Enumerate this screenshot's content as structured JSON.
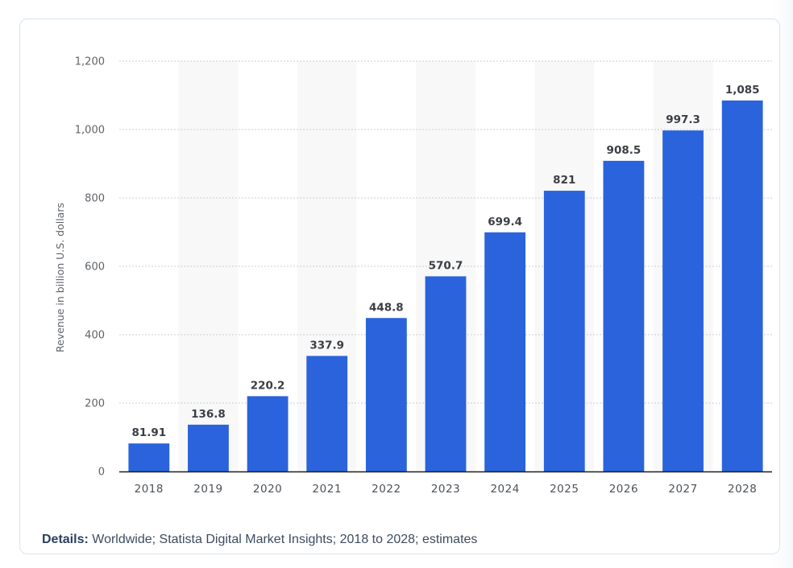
{
  "chart_data": {
    "type": "bar",
    "categories": [
      "2018",
      "2019",
      "2020",
      "2021",
      "2022",
      "2023",
      "2024",
      "2025",
      "2026",
      "2027",
      "2028"
    ],
    "values": [
      81.91,
      136.8,
      220.2,
      337.9,
      448.8,
      570.7,
      699.4,
      821,
      908.5,
      997.3,
      1085
    ],
    "value_labels": [
      "81.91",
      "136.8",
      "220.2",
      "337.9",
      "448.8",
      "570.7",
      "699.4",
      "821",
      "908.5",
      "997.3",
      "1,085"
    ],
    "ylabel": "Revenue in billion U.S. dollars",
    "xlabel": "",
    "ylim": [
      0,
      1200
    ],
    "yticks": [
      0,
      200,
      400,
      600,
      800,
      1000,
      1200
    ],
    "ytick_labels": [
      "0",
      "200",
      "400",
      "600",
      "800",
      "1,000",
      "1,200"
    ],
    "grid": true,
    "bar_color": "#2a63db",
    "band_color": "#f8f8f8"
  },
  "details": {
    "label": "Details:",
    "text": "Worldwide; Statista Digital Market Insights; 2018 to 2028; estimates"
  }
}
